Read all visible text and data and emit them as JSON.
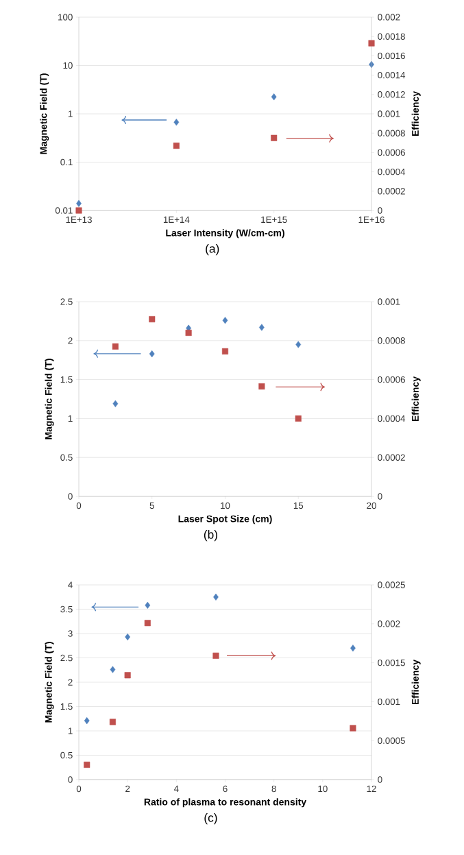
{
  "chart_data": [
    {
      "type": "scatter",
      "xlabel": "Laser Intensity (W/cm-cm)",
      "ylabel": "Magnetic Field (T)",
      "y2label": "Efficiency",
      "annotations": [
        "(a)"
      ],
      "log": "xy",
      "grid": "y",
      "xlim": [
        10000000000000.0,
        1e+16
      ],
      "xticks": [
        {
          "value": 10000000000000.0,
          "label": "1E+13"
        },
        {
          "value": 100000000000000.0,
          "label": "1E+14"
        },
        {
          "value": 1000000000000000.0,
          "label": "1E+15"
        },
        {
          "value": 1e+16,
          "label": "1E+16"
        }
      ],
      "ylim": [
        0.01,
        100
      ],
      "yticks": [
        0.01,
        0.1,
        1,
        10,
        100
      ],
      "y2lim": [
        0,
        0.002
      ],
      "y2ticks": [
        0,
        0.0002,
        0.0004,
        0.0006,
        0.0008,
        0.001,
        0.0012,
        0.0014,
        0.0016,
        0.0018,
        0.002
      ],
      "x": [
        10000000000000.0,
        100000000000000.0,
        1000000000000000.0,
        1e+16
      ],
      "series": [
        {
          "color": "#4f81bd",
          "marker": "diamond",
          "values": [
            0.014,
            0.67,
            2.24,
            10.5
          ]
        },
        {
          "color": "#c0504d",
          "marker": "square",
          "axis": "y2",
          "values": [
            0.0,
            0.00067,
            0.00075,
            0.00173
          ]
        }
      ]
    },
    {
      "type": "scatter",
      "xlabel": "Laser Spot Size (cm)",
      "ylabel": "Magnetic Field (T)",
      "y2label": "Efficiency",
      "annotations": [
        "(b)"
      ],
      "grid": "y",
      "xlim": [
        0,
        20
      ],
      "xticks": [
        0,
        5,
        10,
        15,
        20
      ],
      "ylim": [
        0,
        2.5
      ],
      "yticks": [
        0,
        0.5,
        1,
        1.5,
        2,
        2.5
      ],
      "y2lim": [
        0,
        0.001
      ],
      "y2ticks": [
        0,
        0.0002,
        0.0004,
        0.0006,
        0.0008,
        0.001
      ],
      "x": [
        2.5,
        5,
        7.5,
        10,
        12.5,
        15
      ],
      "series": [
        {
          "color": "#4f81bd",
          "marker": "diamond",
          "values": [
            1.19,
            1.83,
            2.16,
            2.26,
            2.17,
            1.95
          ]
        },
        {
          "color": "#c0504d",
          "marker": "square",
          "axis": "y2",
          "values": [
            0.00077,
            0.00091,
            0.00084,
            0.000745,
            0.000565,
            0.0004
          ]
        }
      ]
    },
    {
      "type": "scatter",
      "xlabel": "Ratio of plasma to resonant density",
      "ylabel": "Magnetic Field (T)",
      "y2label": "Efficiency",
      "annotations": [
        "(c)"
      ],
      "grid": "y",
      "xlim": [
        0,
        12
      ],
      "xticks": [
        0,
        2,
        4,
        6,
        8,
        10,
        12
      ],
      "ylim": [
        0,
        4
      ],
      "yticks": [
        0,
        0.5,
        1,
        1.5,
        2,
        2.5,
        3,
        3.5,
        4
      ],
      "y2lim": [
        0,
        0.0025
      ],
      "y2ticks": [
        0,
        0.0005,
        0.001,
        0.0015,
        0.002,
        0.0025
      ],
      "x": [
        0.33,
        1.39,
        2.0,
        2.82,
        5.62,
        11.24
      ],
      "series": [
        {
          "color": "#4f81bd",
          "marker": "diamond",
          "values": [
            1.21,
            2.26,
            2.93,
            3.58,
            3.75,
            2.7
          ]
        },
        {
          "color": "#c0504d",
          "marker": "square",
          "axis": "y2",
          "values": [
            0.00019,
            0.00074,
            0.00134,
            0.00201,
            0.00159,
            0.00066
          ]
        }
      ]
    }
  ]
}
